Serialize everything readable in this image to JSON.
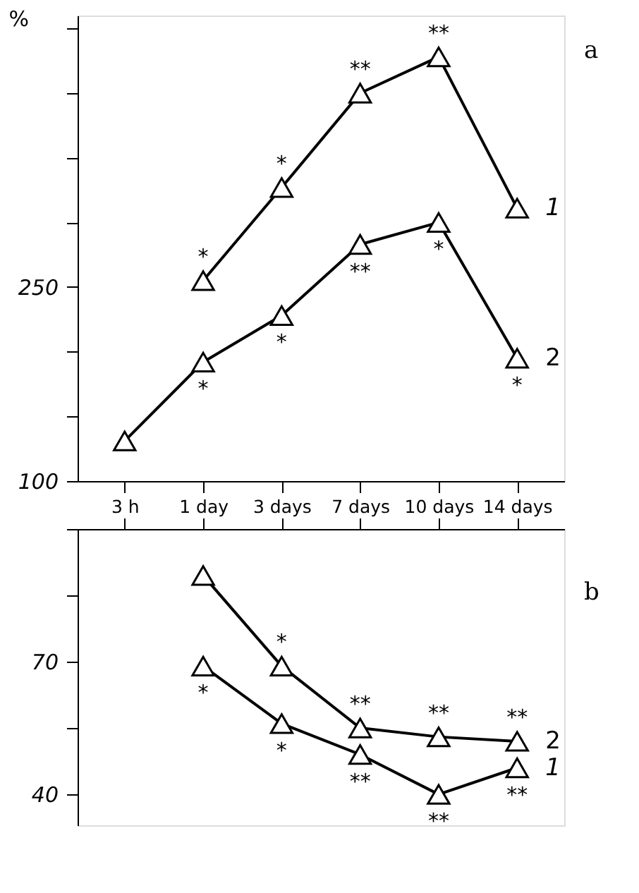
{
  "chart_data": [
    {
      "type": "line",
      "ylabel": "%",
      "categories": [
        "3 h",
        "1 day",
        "3 days",
        "7 days",
        "10 days",
        "14 days"
      ],
      "series": [
        {
          "name": "1",
          "color": "#000000",
          "values": [
            null,
            255,
            327,
            400,
            428,
            311
          ]
        },
        {
          "name": "2",
          "color": "#000000",
          "values": [
            131,
            192,
            228,
            283,
            300,
            195
          ]
        }
      ],
      "ylim": [
        100,
        460
      ],
      "yticks": [
        100,
        {
          "value": 150,
          "label": null
        },
        {
          "value": 200,
          "label": null
        },
        250,
        {
          "value": 300,
          "label": null
        },
        {
          "value": 350,
          "label": null
        },
        {
          "value": 400,
          "label": null
        },
        {
          "value": 450,
          "label": null
        }
      ],
      "marker": "triangle",
      "line_style": "solid",
      "annotations": [
        "a",
        {
          "text": "*",
          "x": "1 day",
          "y": 255
        },
        {
          "text": "*",
          "x": "3 days",
          "y": 327
        },
        {
          "text": "**",
          "x": "7 days",
          "y": 400
        },
        {
          "text": "**",
          "x": "10 days",
          "y": 428
        },
        {
          "text": "*",
          "x": "1 day",
          "y": 192
        },
        {
          "text": "*",
          "x": "3 days",
          "y": 228
        },
        {
          "text": "**",
          "x": "7 days",
          "y": 283
        },
        {
          "text": "*",
          "x": "10 days",
          "y": 300
        },
        {
          "text": "*",
          "x": "14 days",
          "y": 195
        }
      ]
    },
    {
      "type": "line",
      "categories": [
        "3 h",
        "1 day",
        "3 days",
        "7 days",
        "10 days",
        "14 days"
      ],
      "series": [
        {
          "name": "1",
          "color": "#000000",
          "values": [
            null,
            69,
            56,
            49,
            40,
            46
          ]
        },
        {
          "name": "2",
          "color": "#000000",
          "values": [
            null,
            89.5,
            69,
            55,
            53,
            52
          ]
        }
      ],
      "ylim": [
        33,
        100
      ],
      "yticks": [
        40,
        {
          "value": 55,
          "label": null
        },
        70,
        {
          "value": 85,
          "label": null
        },
        {
          "value": 100,
          "label": null
        }
      ],
      "marker": "triangle",
      "line_style": "solid",
      "tick_labels": "y",
      "annotations": [
        "b",
        {
          "text": "*",
          "x": "1 day",
          "y": 69
        },
        {
          "text": "*",
          "x": "3 days",
          "y": 56
        },
        {
          "text": "**",
          "x": "7 days",
          "y": 49
        },
        {
          "text": "**",
          "x": "10 days",
          "y": 40
        },
        {
          "text": "**",
          "x": "14 days",
          "y": 46
        },
        {
          "text": "*",
          "x": "3 days",
          "y": 69
        },
        {
          "text": "**",
          "x": "7 days",
          "y": 55
        },
        {
          "text": "**",
          "x": "10 days",
          "y": 53
        },
        {
          "text": "**",
          "x": "14 days",
          "y": 52
        }
      ]
    }
  ]
}
